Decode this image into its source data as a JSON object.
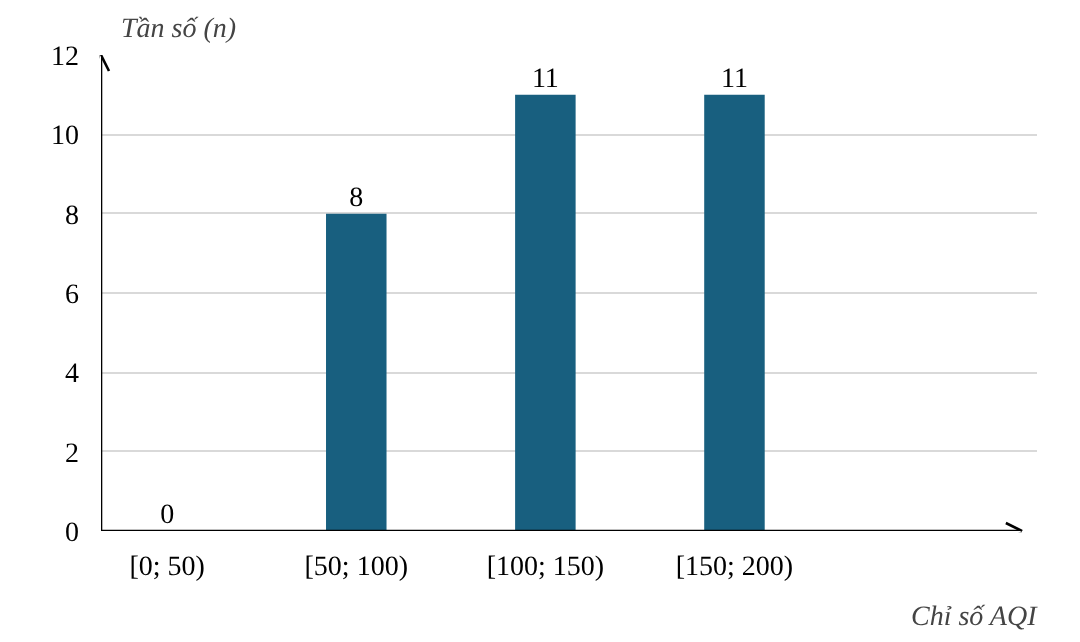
{
  "chart_data": {
    "type": "bar",
    "ylabel": "Tần số (n)",
    "xlabel": "Chỉ số AQI",
    "categories": [
      "[0; 50)",
      "[50; 100)",
      "[100; 150)",
      "[150; 200)"
    ],
    "values": [
      0,
      8,
      11,
      11
    ],
    "color": "#185f7f",
    "ylim": [
      0,
      12
    ],
    "yticks": [
      0,
      2,
      4,
      6,
      8,
      10,
      12
    ],
    "grid": "y",
    "data_labels": true
  }
}
